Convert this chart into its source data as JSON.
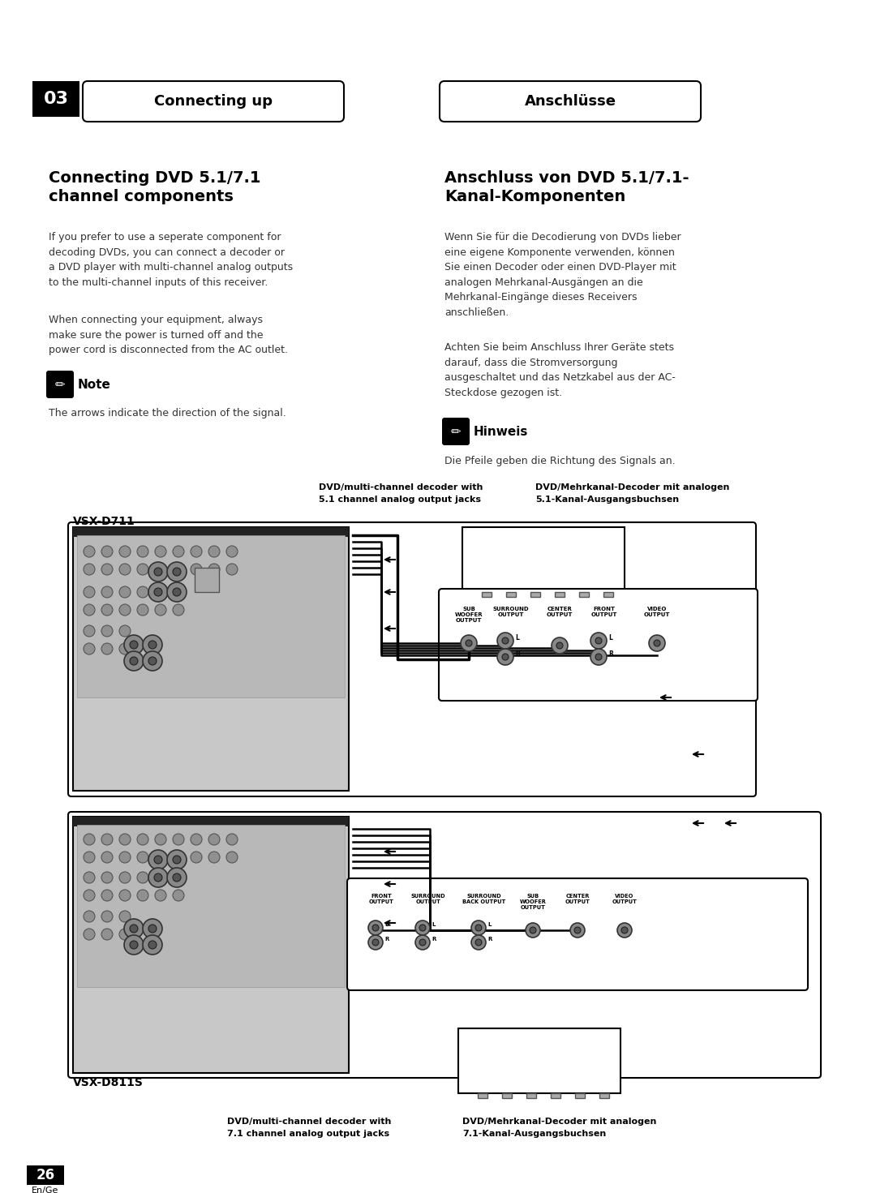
{
  "bg_color": "#ffffff",
  "page_number": "26",
  "page_sub": "En/Ge",
  "header_num": "03",
  "header_left": "Connecting up",
  "header_right": "Anschlüsse",
  "title_left": "Connecting DVD 5.1/7.1\nchannel components",
  "title_right": "Anschluss von DVD 5.1/7.1-\nKanal-Komponenten",
  "body_left_1": "If you prefer to use a seperate component for\ndecoding DVDs, you can connect a decoder or\na DVD player with multi-channel analog outputs\nto the multi-channel inputs of this receiver.",
  "body_left_2": "When connecting your equipment, always\nmake sure the power is turned off and the\npower cord is disconnected from the AC outlet.",
  "note_label": "Note",
  "note_text": "The arrows indicate the direction of the signal.",
  "body_right_1": "Wenn Sie für die Decodierung von DVDs lieber\neine eigene Komponente verwenden, können\nSie einen Decoder oder einen DVD-Player mit\nanalogen Mehrkanal-Ausgängen an die\nMehrkanal-Eingänge dieses Receivers\nanschließen.",
  "body_right_2": "Achten Sie beim Anschluss Ihrer Geräte stets\ndarauf, dass die Stromversorgung\nausgeschaltet und das Netzkabel aus der AC-\nSteckdose gezogen ist.",
  "hinweis_label": "Hinweis",
  "hinweis_text": "Die Pfeile geben die Richtung des Signals an.",
  "diagram1_label_en": "DVD/multi-channel decoder with",
  "diagram1_label_en2": "5.1 channel analog output jacks",
  "diagram1_label_de": "DVD/Mehrkanal-Decoder mit analogen",
  "diagram1_label_de2": "5.1-Kanal-Ausgangsbuchsen",
  "diagram1_model": "VSX-D711",
  "diagram2_label_en": "DVD/multi-channel decoder with",
  "diagram2_label_en2": "7.1 channel analog output jacks",
  "diagram2_label_de": "DVD/Mehrkanal-Decoder mit analogen",
  "diagram2_label_de2": "7.1-Kanal-Ausgangsbuchsen",
  "diagram2_model": "VSX-D811S"
}
